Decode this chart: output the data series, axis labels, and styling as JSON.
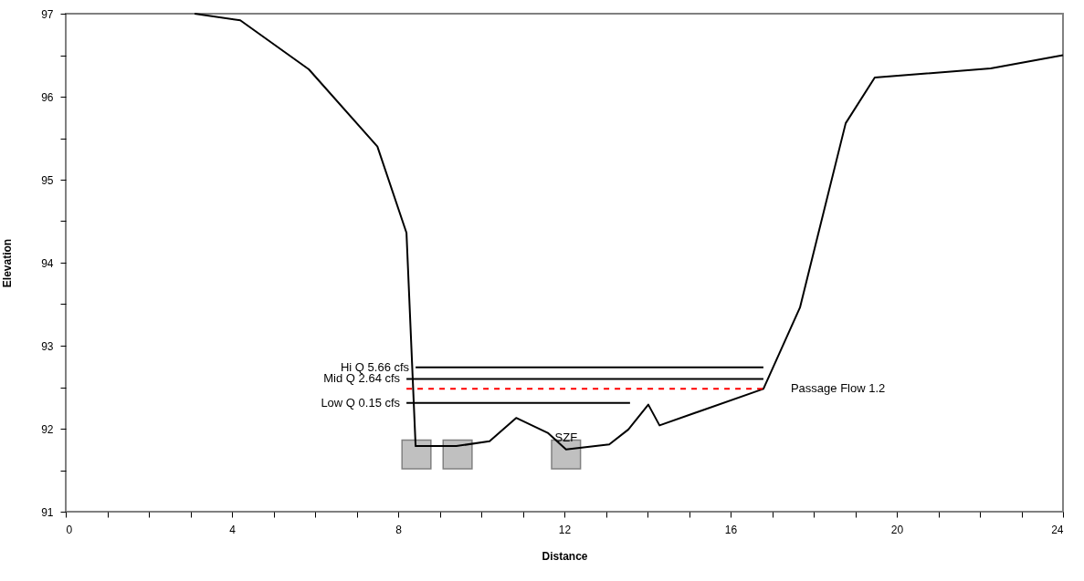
{
  "chart_data": {
    "type": "line",
    "xlabel": "Distance",
    "ylabel": "Elevation",
    "xlim": [
      0,
      24
    ],
    "xticks": [
      0,
      {
        "value": 1,
        "label": null
      },
      {
        "value": 2,
        "label": null
      },
      {
        "value": 3,
        "label": null
      },
      4,
      {
        "value": 5,
        "label": null
      },
      {
        "value": 6,
        "label": null
      },
      {
        "value": 7,
        "label": null
      },
      8,
      {
        "value": 9,
        "label": null
      },
      {
        "value": 10,
        "label": null
      },
      {
        "value": 11,
        "label": null
      },
      12,
      {
        "value": 13,
        "label": null
      },
      {
        "value": 14,
        "label": null
      },
      {
        "value": 15,
        "label": null
      },
      16,
      {
        "value": 17,
        "label": null
      },
      {
        "value": 18,
        "label": null
      },
      {
        "value": 19,
        "label": null
      },
      20,
      {
        "value": 21,
        "label": null
      },
      {
        "value": 22,
        "label": null
      },
      {
        "value": 23,
        "label": null
      },
      24
    ],
    "ylim": [
      91,
      97
    ],
    "yticks": [
      91,
      {
        "value": 91.5,
        "label": null
      },
      92,
      {
        "value": 92.5,
        "label": null
      },
      93,
      {
        "value": 93.5,
        "label": null
      },
      94,
      {
        "value": 94.5,
        "label": null
      },
      95,
      {
        "value": 95.5,
        "label": null
      },
      96,
      {
        "value": 96.5,
        "label": null
      },
      97
    ],
    "grid": false,
    "series": [
      {
        "type": "line",
        "color": "#000000",
        "x": [
          3.1,
          4.2,
          5.85,
          7.5,
          8.2,
          8.42,
          9.4,
          10.2,
          10.84,
          11.6,
          12.04,
          13.08,
          13.54,
          14.02,
          14.29,
          16.79,
          17.67,
          18.77,
          19.47,
          22.26,
          24
        ],
        "values": [
          97.0,
          96.92,
          96.33,
          95.4,
          94.36,
          91.79,
          91.79,
          91.85,
          92.13,
          91.95,
          91.75,
          91.81,
          91.99,
          92.29,
          92.04,
          92.48,
          93.46,
          95.68,
          96.23,
          96.34,
          96.5
        ]
      },
      {
        "type": "line",
        "name": "Hi Q 5.66 cfs",
        "color": "#000000",
        "x": [
          8.42,
          16.79
        ],
        "values": [
          92.74,
          92.74
        ]
      },
      {
        "type": "line",
        "name": "Mid Q 2.64 cfs",
        "color": "#000000",
        "x": [
          8.2,
          16.79
        ],
        "values": [
          92.6,
          92.6
        ]
      },
      {
        "type": "line",
        "name": "Passage Flow 1.2",
        "color": "#ff0000",
        "line_style": "dashed",
        "x": [
          8.2,
          16.79
        ],
        "values": [
          92.48,
          92.48
        ]
      },
      {
        "type": "line",
        "name": "Low Q 0.15 cfs",
        "color": "#000000",
        "x": [
          8.2,
          13.58
        ],
        "values": [
          92.31,
          92.31
        ]
      },
      {
        "type": "scatter",
        "marker": "square",
        "color": "#c0c0c0",
        "x": [
          8.44,
          9.43,
          12.04
        ],
        "values": [
          91.69,
          91.69,
          91.69
        ]
      }
    ],
    "annotations": [
      {
        "text": "SZF",
        "x": 12.04,
        "y": 91.75
      }
    ]
  }
}
